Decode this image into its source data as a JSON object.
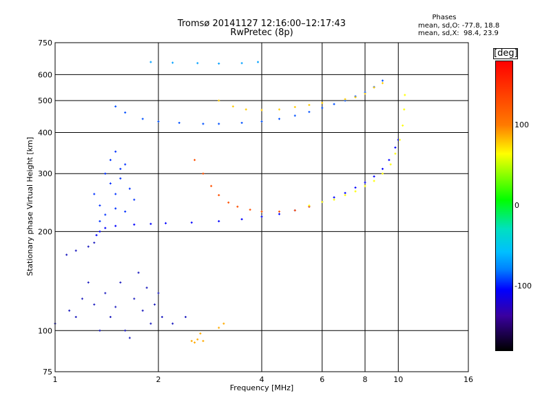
{
  "header": {
    "title_line1": "Tromsø 20141127 12:16:00–12:17:43",
    "title_line2": "RwPretec (8p)"
  },
  "stats": {
    "title": "Phases",
    "line_o": "mean, sd,O: -77.8, 18.8",
    "line_x": "mean, sd,X:  98.4, 23.9"
  },
  "colorbar": {
    "title": "[deg]",
    "tick_labels": [
      "100",
      "0",
      "-100"
    ],
    "tick_values": [
      100,
      0,
      -100
    ],
    "range": [
      -180,
      180
    ],
    "colors": [
      "#ff0000",
      "#ff7a00",
      "#ffff00",
      "#7fff00",
      "#00ff00",
      "#00bfff",
      "#0080ff",
      "#0000ff",
      "#000000"
    ]
  },
  "chart_data": {
    "type": "scatter",
    "title": "Tromsø 20141127 12:16:00–12:17:43",
    "subtitle": "RwPretec (8p)",
    "xlabel": "Frequency [MHz]",
    "ylabel": "Stationary phase Virtual Height [km]",
    "x_scale": "log",
    "y_scale": "log",
    "xlim": [
      1,
      16
    ],
    "ylim": [
      75,
      750
    ],
    "x_ticks": [
      1,
      2,
      4,
      6,
      8,
      10,
      16
    ],
    "x_tick_labels": [
      "1",
      "2",
      "4",
      "6",
      "8",
      "10",
      "16"
    ],
    "y_ticks": [
      75,
      100,
      200,
      300,
      400,
      500,
      600,
      750
    ],
    "y_tick_labels": [
      "75",
      "100",
      "200",
      "300",
      "400",
      "500",
      "600",
      "750"
    ],
    "grid": true,
    "color_scale": "phase [deg]",
    "series": [
      {
        "color": "#0000ff",
        "points": [
          [
            1.32,
            195
          ],
          [
            1.35,
            200
          ],
          [
            1.4,
            205
          ],
          [
            1.5,
            208
          ],
          [
            1.7,
            210
          ],
          [
            1.9,
            211
          ],
          [
            2.1,
            212
          ],
          [
            2.5,
            213
          ],
          [
            3.0,
            215
          ],
          [
            3.5,
            218
          ],
          [
            4.0,
            222
          ],
          [
            4.5,
            226
          ],
          [
            5.0,
            232
          ],
          [
            5.5,
            238
          ],
          [
            6.0,
            246
          ],
          [
            6.5,
            254
          ],
          [
            7.0,
            262
          ],
          [
            7.5,
            272
          ],
          [
            8.0,
            282
          ],
          [
            8.5,
            294
          ],
          [
            9.0,
            310
          ],
          [
            9.4,
            330
          ],
          [
            9.8,
            360
          ],
          [
            10.0,
            380
          ]
        ]
      },
      {
        "color": "#ff5000",
        "points": [
          [
            2.55,
            330
          ],
          [
            2.7,
            300
          ],
          [
            2.85,
            275
          ],
          [
            3.0,
            258
          ],
          [
            3.2,
            245
          ],
          [
            3.4,
            238
          ],
          [
            3.7,
            233
          ],
          [
            4.0,
            230
          ],
          [
            4.5,
            230
          ],
          [
            5.0,
            232
          ],
          [
            5.5,
            238
          ]
        ]
      },
      {
        "color": "#ffff00",
        "points": [
          [
            5.5,
            240
          ],
          [
            6.0,
            246
          ],
          [
            6.5,
            250
          ],
          [
            7.0,
            258
          ],
          [
            7.5,
            265
          ],
          [
            8.0,
            275
          ],
          [
            8.5,
            285
          ],
          [
            9.0,
            300
          ],
          [
            9.5,
            320
          ],
          [
            9.8,
            345
          ],
          [
            10.1,
            380
          ],
          [
            10.3,
            420
          ],
          [
            10.4,
            470
          ],
          [
            10.45,
            520
          ]
        ]
      },
      {
        "color": "#0050ff",
        "points": [
          [
            1.5,
            480
          ],
          [
            1.6,
            460
          ],
          [
            1.8,
            440
          ],
          [
            2.0,
            432
          ],
          [
            2.3,
            428
          ],
          [
            2.7,
            425
          ],
          [
            3.0,
            425
          ],
          [
            3.5,
            428
          ],
          [
            4.0,
            432
          ],
          [
            4.5,
            440
          ],
          [
            5.0,
            450
          ],
          [
            5.5,
            462
          ],
          [
            6.0,
            475
          ],
          [
            6.5,
            488
          ],
          [
            7.0,
            500
          ],
          [
            7.5,
            515
          ],
          [
            8.0,
            530
          ],
          [
            8.5,
            550
          ],
          [
            9.0,
            575
          ]
        ]
      },
      {
        "color": "#ffcc00",
        "points": [
          [
            3.0,
            500
          ],
          [
            3.3,
            480
          ],
          [
            3.6,
            470
          ],
          [
            4.0,
            468
          ],
          [
            4.5,
            470
          ],
          [
            5.0,
            478
          ],
          [
            5.5,
            485
          ],
          [
            6.0,
            492
          ],
          [
            7.0,
            505
          ],
          [
            7.5,
            512
          ],
          [
            8.0,
            525
          ],
          [
            8.5,
            548
          ],
          [
            9.0,
            565
          ]
        ]
      },
      {
        "color": "#00a0ff",
        "points": [
          [
            1.9,
            655
          ],
          [
            2.2,
            652
          ],
          [
            2.6,
            650
          ],
          [
            3.0,
            648
          ],
          [
            3.5,
            650
          ],
          [
            3.9,
            655
          ]
        ]
      },
      {
        "color": "#0030ff",
        "points": [
          [
            1.4,
            300
          ],
          [
            1.45,
            280
          ],
          [
            1.5,
            260
          ],
          [
            1.55,
            290
          ],
          [
            1.6,
            320
          ],
          [
            1.3,
            260
          ],
          [
            1.35,
            240
          ],
          [
            1.45,
            330
          ],
          [
            1.5,
            350
          ],
          [
            1.55,
            310
          ],
          [
            1.65,
            270
          ],
          [
            1.7,
            250
          ],
          [
            1.4,
            225
          ],
          [
            1.6,
            230
          ],
          [
            1.35,
            215
          ],
          [
            1.5,
            235
          ]
        ]
      },
      {
        "color": "#2020c0",
        "points": [
          [
            1.0,
            105
          ],
          [
            1.1,
            115
          ],
          [
            1.15,
            110
          ],
          [
            1.2,
            125
          ],
          [
            1.3,
            120
          ],
          [
            1.4,
            130
          ],
          [
            1.45,
            110
          ],
          [
            1.5,
            118
          ],
          [
            1.55,
            140
          ],
          [
            1.6,
            100
          ],
          [
            1.7,
            125
          ],
          [
            1.75,
            150
          ],
          [
            1.8,
            115
          ],
          [
            1.85,
            135
          ],
          [
            1.9,
            105
          ],
          [
            1.95,
            120
          ],
          [
            2.0,
            130
          ],
          [
            2.05,
            110
          ],
          [
            2.2,
            105
          ],
          [
            2.4,
            110
          ],
          [
            1.25,
            140
          ],
          [
            1.35,
            100
          ],
          [
            1.65,
            95
          ],
          [
            1.15,
            175
          ],
          [
            1.25,
            180
          ],
          [
            1.3,
            185
          ],
          [
            1.08,
            170
          ]
        ]
      },
      {
        "color": "#ffaa00",
        "points": [
          [
            2.5,
            93
          ],
          [
            2.55,
            92
          ],
          [
            2.6,
            94
          ],
          [
            2.7,
            93
          ],
          [
            2.65,
            98
          ],
          [
            3.1,
            105
          ],
          [
            3.0,
            102
          ]
        ]
      }
    ]
  }
}
